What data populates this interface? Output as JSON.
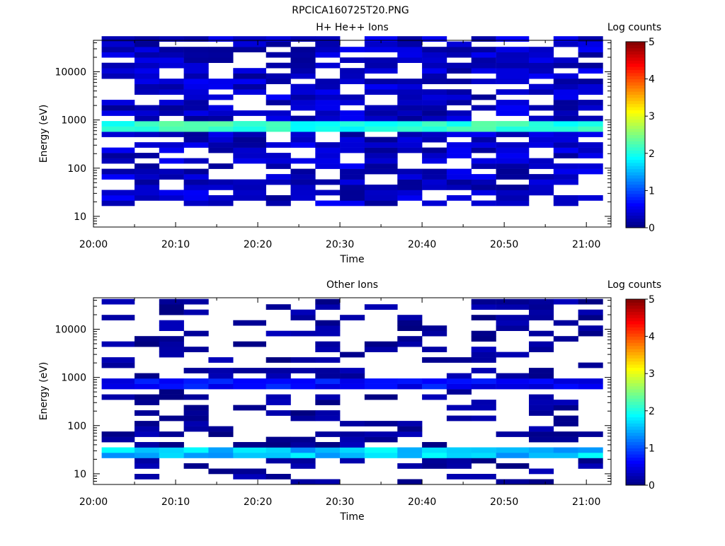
{
  "figure_title": "RPCICA160725T20.PNG",
  "colors": {
    "colormap": [
      "#00007f",
      "#0000ff",
      "#0080ff",
      "#00ffff",
      "#80ff80",
      "#ffff00",
      "#ff8000",
      "#ff0000",
      "#7f0000"
    ]
  },
  "chart_data": [
    {
      "type": "heatmap",
      "title": "H+ He++ Ions",
      "xlabel": "Time",
      "ylabel": "Energy (eV)",
      "y_scale": "log",
      "ylim": [
        6,
        45000
      ],
      "xlim": [
        "20:00",
        "21:03"
      ],
      "x_ticks": [
        "20:00",
        "20:10",
        "20:20",
        "20:30",
        "20:40",
        "20:50",
        "21:00"
      ],
      "y_ticks": [
        "10",
        "100",
        "1000",
        "10000"
      ],
      "time_bins": [
        "20:01",
        "20:05",
        "20:08",
        "20:11",
        "20:14",
        "20:17",
        "20:21",
        "20:24",
        "20:27",
        "20:30",
        "20:33",
        "20:37",
        "20:40",
        "20:43",
        "20:46",
        "20:49",
        "20:53",
        "20:56",
        "20:59"
      ],
      "colorbar": {
        "label": "Log counts",
        "ticks": [
          "0",
          "1",
          "2",
          "3",
          "4",
          "5"
        ],
        "range": [
          0,
          5
        ]
      },
      "dominant_feature": {
        "energy_eV": [
          450,
          800
        ],
        "log_counts": [
          1.8,
          2.4
        ],
        "description_of_band": "Continuous bright band near 500-700 eV"
      },
      "background_level_log_counts": [
        0.1,
        0.6
      ],
      "background_energy_range_eV": [
        15,
        45000
      ]
    },
    {
      "type": "heatmap",
      "title": "Other Ions",
      "xlabel": "Time",
      "ylabel": "Energy (eV)",
      "y_scale": "log",
      "ylim": [
        6,
        45000
      ],
      "xlim": [
        "20:00",
        "21:03"
      ],
      "x_ticks": [
        "20:00",
        "20:10",
        "20:20",
        "20:30",
        "20:40",
        "20:50",
        "21:00"
      ],
      "y_ticks": [
        "10",
        "100",
        "1000",
        "10000"
      ],
      "time_bins": [
        "20:01",
        "20:05",
        "20:08",
        "20:11",
        "20:14",
        "20:17",
        "20:21",
        "20:24",
        "20:27",
        "20:30",
        "20:33",
        "20:37",
        "20:40",
        "20:43",
        "20:46",
        "20:49",
        "20:53",
        "20:56",
        "20:59"
      ],
      "colorbar": {
        "label": "Log counts",
        "ticks": [
          "0",
          "1",
          "2",
          "3",
          "4",
          "5"
        ],
        "range": [
          0,
          5
        ]
      },
      "dominant_feature": {
        "energy_eV": [
          20,
          35
        ],
        "log_counts": [
          1.3,
          1.9
        ]
      },
      "secondary_feature": {
        "energy_eV": [
          450,
          800
        ],
        "log_counts": [
          0.4,
          0.9
        ]
      },
      "background_level_log_counts": [
        0.0,
        0.3
      ],
      "background_energy_range_eV": [
        6,
        35000
      ]
    }
  ]
}
